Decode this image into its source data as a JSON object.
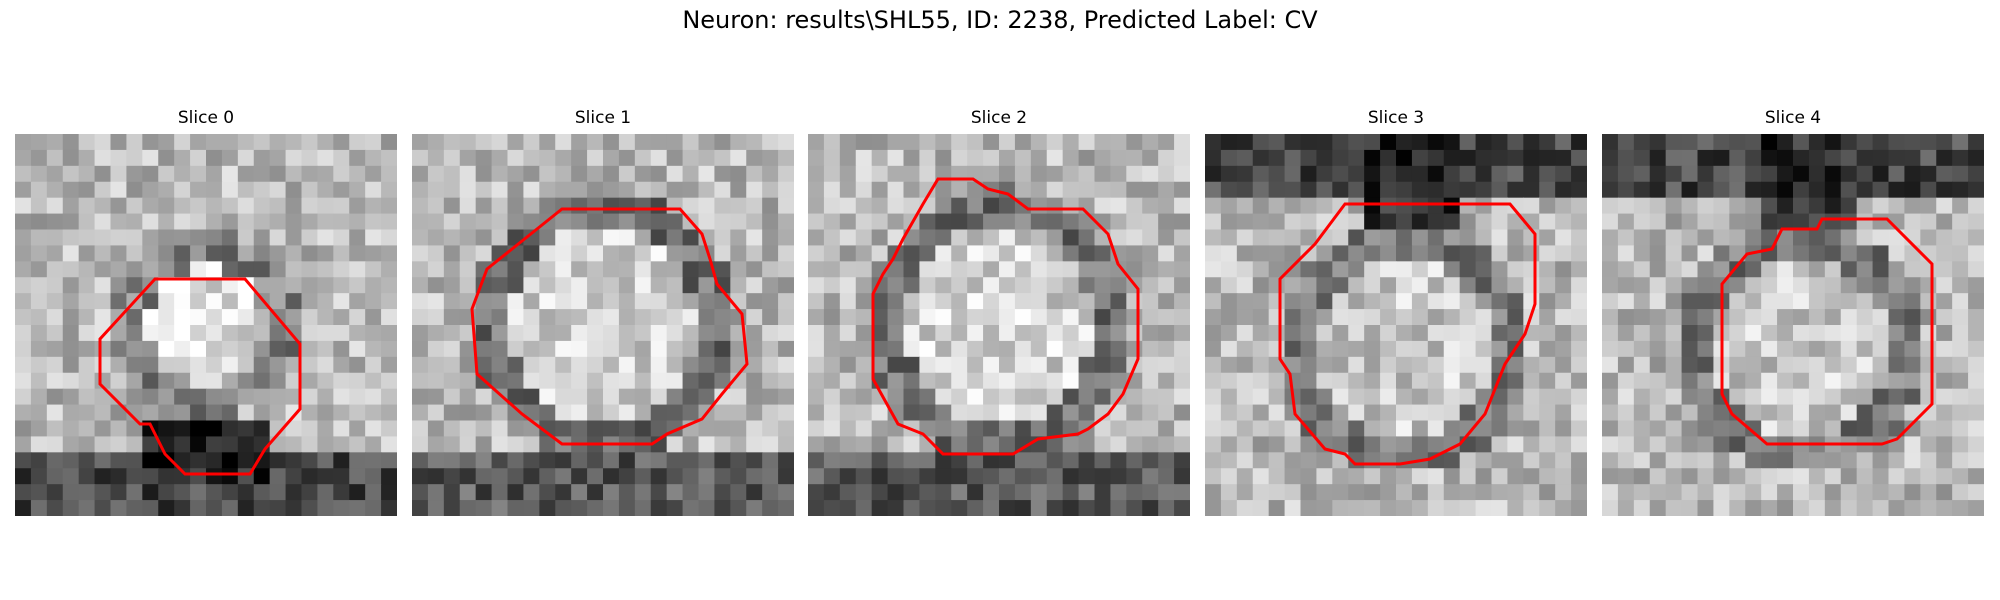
{
  "figure": {
    "title": "Neuron: results\\SHL55, ID: 2238, Predicted Label: CV"
  },
  "panels": [
    {
      "title": "Slice 0"
    },
    {
      "title": "Slice 1"
    },
    {
      "title": "Slice 2"
    },
    {
      "title": "Slice 3"
    },
    {
      "title": "Slice 4"
    }
  ],
  "colors": {
    "contour": "#ff0000"
  }
}
